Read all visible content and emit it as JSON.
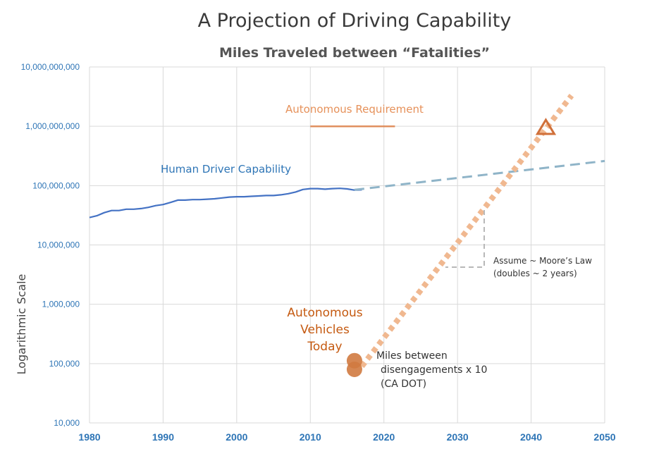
{
  "title": "A Projection of Driving Capability",
  "chart_data": {
    "type": "line",
    "title": "Miles Traveled between “Fatalities”",
    "ylabel": "Logarithmic Scale",
    "xlabel": "",
    "y_scale": "log",
    "xlim": [
      1980,
      2050
    ],
    "ylim": [
      10000,
      10000000000
    ],
    "x_ticks": [
      "1980",
      "1990",
      "2000",
      "2010",
      "2020",
      "2030",
      "2040",
      "2050"
    ],
    "y_ticks": [
      "10,000",
      "100,000",
      "1,000,000",
      "10,000,000",
      "100,000,000",
      "1,000,000,000",
      "10,000,000,000"
    ],
    "grid": true,
    "series": [
      {
        "name": "Human Driver Capability",
        "color": "#4472c4",
        "style": "solid",
        "points": [
          [
            1980,
            29000000
          ],
          [
            1981,
            31000000
          ],
          [
            1982,
            35000000
          ],
          [
            1983,
            38000000
          ],
          [
            1984,
            38000000
          ],
          [
            1985,
            40000000
          ],
          [
            1986,
            40000000
          ],
          [
            1987,
            41000000
          ],
          [
            1988,
            43000000
          ],
          [
            1989,
            46000000
          ],
          [
            1990,
            48000000
          ],
          [
            1991,
            52000000
          ],
          [
            1992,
            57000000
          ],
          [
            1993,
            57000000
          ],
          [
            1994,
            58000000
          ],
          [
            1995,
            58000000
          ],
          [
            1996,
            59000000
          ],
          [
            1997,
            60000000
          ],
          [
            1998,
            62000000
          ],
          [
            1999,
            64000000
          ],
          [
            2000,
            65000000
          ],
          [
            2001,
            65000000
          ],
          [
            2002,
            66000000
          ],
          [
            2003,
            67000000
          ],
          [
            2004,
            68000000
          ],
          [
            2005,
            68000000
          ],
          [
            2006,
            70000000
          ],
          [
            2007,
            73000000
          ],
          [
            2008,
            78000000
          ],
          [
            2009,
            86000000
          ],
          [
            2010,
            89000000
          ],
          [
            2011,
            89000000
          ],
          [
            2012,
            87000000
          ],
          [
            2013,
            89000000
          ],
          [
            2014,
            90000000
          ],
          [
            2015,
            88000000
          ],
          [
            2016,
            84000000
          ],
          [
            2017,
            85000000
          ]
        ]
      },
      {
        "name": "Human projection",
        "color": "#8fb4c8",
        "style": "dashed",
        "points": [
          [
            2016,
            85000000
          ],
          [
            2050,
            260000000
          ]
        ]
      },
      {
        "name": "Autonomous Requirement",
        "color": "#e09060",
        "style": "solid",
        "points": [
          [
            2010,
            1000000000
          ],
          [
            2021.5,
            1000000000
          ]
        ]
      },
      {
        "name": "Autonomous projection",
        "color": "#f0b890",
        "style": "dotted",
        "points": [
          [
            2017,
            90000
          ],
          [
            2045.5,
            3300000000
          ]
        ]
      }
    ],
    "markers": [
      {
        "name": "Autonomous Vehicles Today",
        "x": 2016,
        "y": 112000,
        "color": "#d07a40",
        "shape": "circle"
      },
      {
        "name": "Autonomous Vehicles Today",
        "x": 2016,
        "y": 80000,
        "color": "#d07a40",
        "shape": "circle"
      },
      {
        "name": "Target",
        "x": 2042,
        "y": 950000000,
        "color": "#d0703a",
        "shape": "triangle"
      }
    ],
    "annotations": {
      "human": "Human Driver Capability",
      "requirement": "Autonomous Requirement",
      "av_line1": "Autonomous",
      "av_line2": "Vehicles",
      "av_line3": "Today",
      "miles_line1": "Miles between",
      "miles_line2": "disengagements x 10",
      "miles_line3": "(CA DOT)",
      "moore_line1": "Assume ~ Moore’s Law",
      "moore_line2": "(doubles  ~  2 years)"
    }
  }
}
